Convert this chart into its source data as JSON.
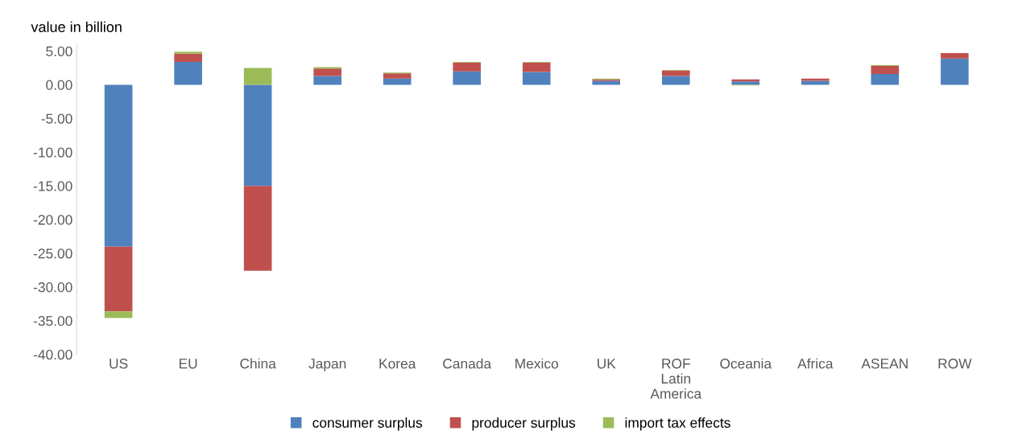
{
  "chart_data": {
    "type": "bar",
    "stacked": true,
    "ylabel": "value in billion",
    "categories": [
      "US",
      "EU",
      "China",
      "Japan",
      "Korea",
      "Canada",
      "Mexico",
      "UK",
      "ROF\nLatin\nAmerica",
      "Oceania",
      "Africa",
      "ASEAN",
      "ROW"
    ],
    "series": [
      {
        "name": "consumer surplus",
        "color": "#4f81bd",
        "values": [
          -24.0,
          3.4,
          -15.0,
          1.3,
          0.9,
          2.0,
          1.9,
          0.6,
          1.3,
          0.5,
          0.6,
          1.6,
          3.9
        ]
      },
      {
        "name": "producer surplus",
        "color": "#c0504d",
        "values": [
          -9.6,
          1.2,
          -12.6,
          1.1,
          0.8,
          1.3,
          1.4,
          0.2,
          0.8,
          0.3,
          0.3,
          1.2,
          0.8
        ]
      },
      {
        "name": "import tax effects",
        "color": "#9bbb59",
        "values": [
          -1.0,
          0.3,
          2.5,
          0.2,
          0.1,
          0.1,
          0.1,
          0.1,
          0.1,
          -0.1,
          0.0,
          0.1,
          0.0
        ]
      }
    ],
    "ylim": [
      -40,
      6
    ],
    "yticks": [
      {
        "value": -40,
        "label": "-40.00"
      },
      {
        "value": -35,
        "label": "-35.00"
      },
      {
        "value": -30,
        "label": "-30.00"
      },
      {
        "value": -25,
        "label": "-25.00"
      },
      {
        "value": -20,
        "label": "-20.00"
      },
      {
        "value": -15,
        "label": "-15.00"
      },
      {
        "value": -10,
        "label": "-10.00"
      },
      {
        "value": -5,
        "label": "-5.00"
      },
      {
        "value": 0,
        "label": "0.00"
      },
      {
        "value": 5,
        "label": "5.00"
      }
    ],
    "grid": false,
    "legend": "bottom"
  }
}
